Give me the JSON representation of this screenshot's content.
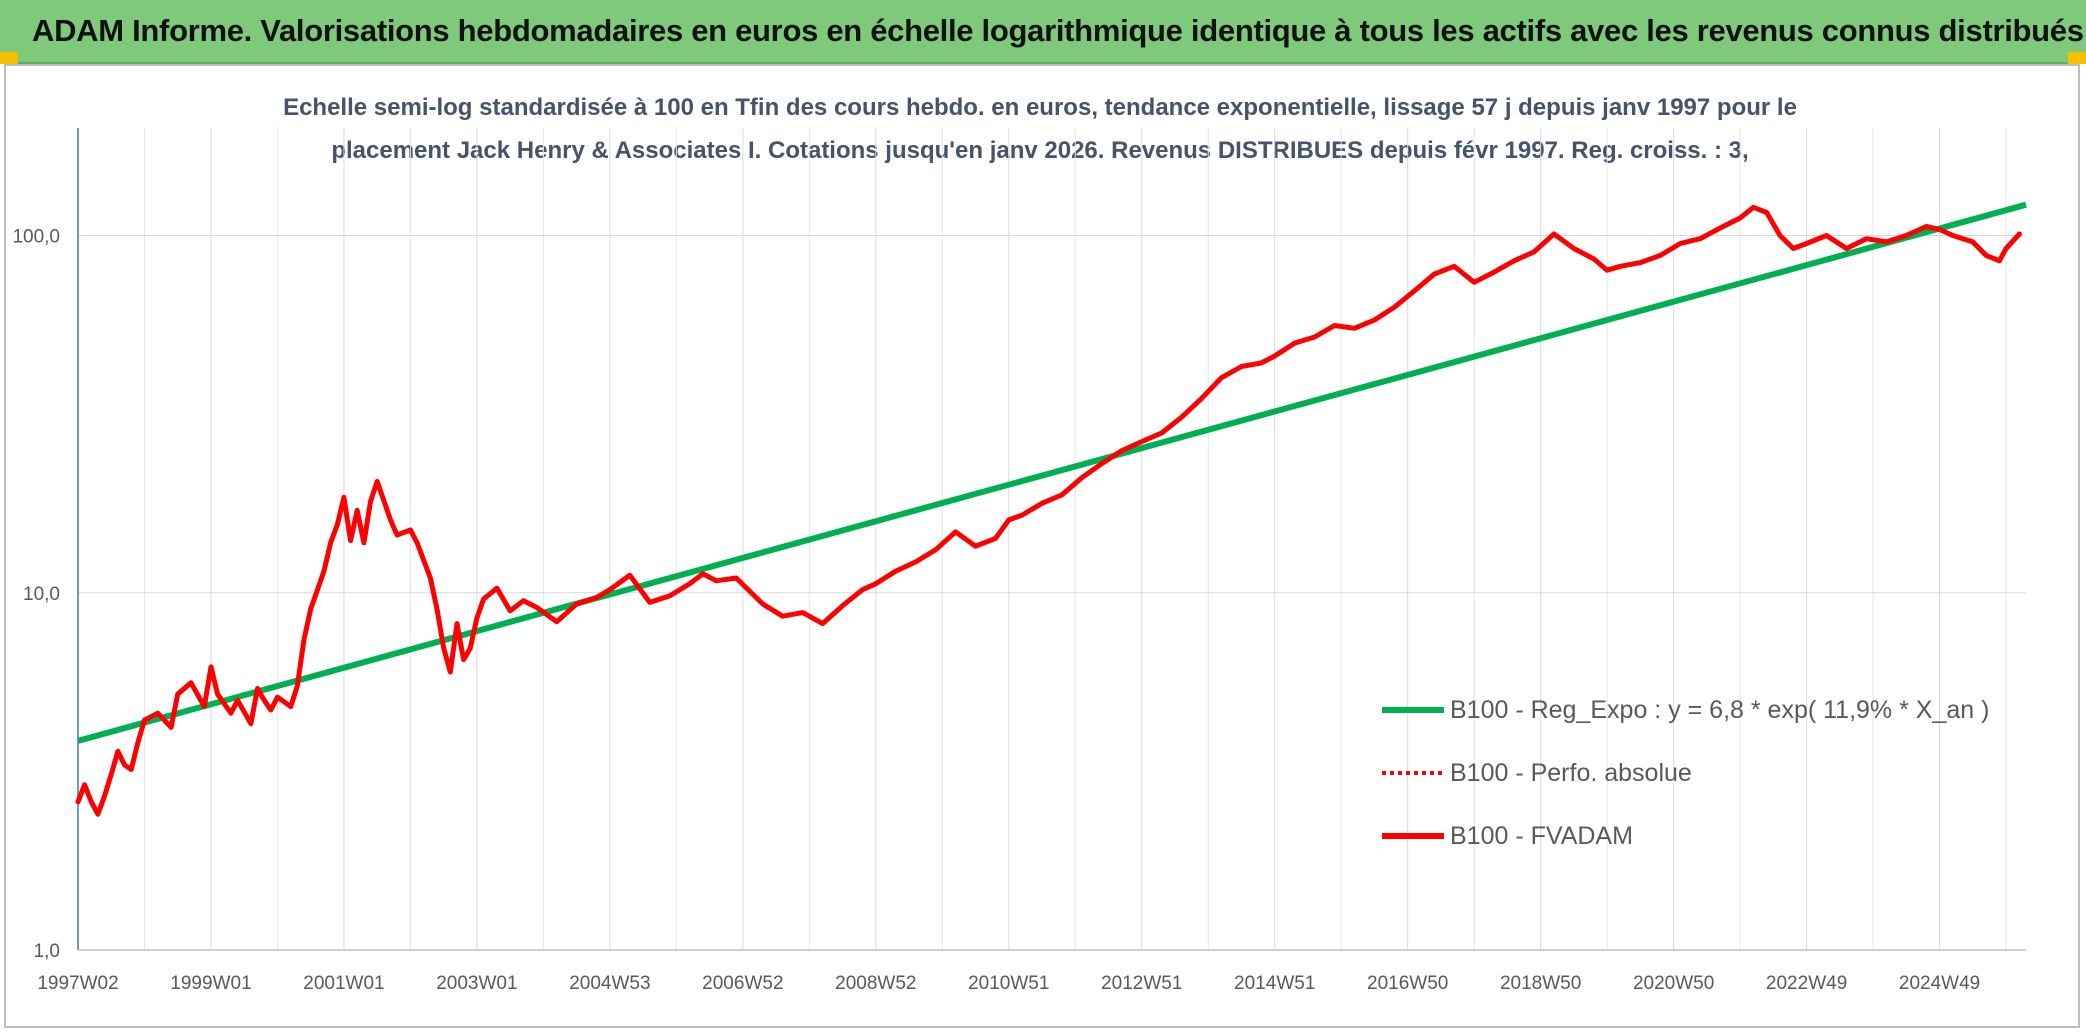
{
  "header": {
    "title": "ADAM Informe. Valorisations hebdomadaires en euros en échelle logarithmique identique à tous les actifs avec les revenus connus distribués"
  },
  "chart_data": {
    "type": "line",
    "title_lines": [
      "Echelle semi-log standardisée à 100 en Tfin des cours hebdo. en euros, tendance exponentielle, lissage 57 j depuis janv 1997 pour le",
      "placement Jack Henry & Associates I. Cotations jusqu'en janv 2026. Revenus DISTRIBUES depuis févr 1997. Reg. croiss. : 3,"
    ],
    "y_scale": "log",
    "ylim": [
      1,
      200
    ],
    "xlim": [
      1997.0,
      2026.3
    ],
    "y_ticks": [
      {
        "value": 1,
        "label": "1,0"
      },
      {
        "value": 10,
        "label": "10,0"
      },
      {
        "value": 100,
        "label": "100,0"
      }
    ],
    "x_ticks": [
      {
        "value": 1997.0,
        "label": "1997W02"
      },
      {
        "value": 1999.0,
        "label": "1999W01"
      },
      {
        "value": 2001.0,
        "label": "2001W01"
      },
      {
        "value": 2003.0,
        "label": "2003W01"
      },
      {
        "value": 2005.0,
        "label": "2004W53"
      },
      {
        "value": 2007.0,
        "label": "2006W52"
      },
      {
        "value": 2009.0,
        "label": "2008W52"
      },
      {
        "value": 2011.0,
        "label": "2010W51"
      },
      {
        "value": 2013.0,
        "label": "2012W51"
      },
      {
        "value": 2015.0,
        "label": "2014W51"
      },
      {
        "value": 2017.0,
        "label": "2016W50"
      },
      {
        "value": 2019.0,
        "label": "2018W50"
      },
      {
        "value": 2021.0,
        "label": "2020W50"
      },
      {
        "value": 2023.0,
        "label": "2022W49"
      },
      {
        "value": 2025.0,
        "label": "2024W49"
      }
    ],
    "grid": "vertical and horizontal",
    "legend_position": "bottom-right",
    "series": [
      {
        "name": "B100 - Reg_Expo : y = 6,8 * exp( 11,9% *  X_an )",
        "color": "#00b050",
        "style": "solid",
        "x": [
          1997.0,
          2026.3
        ],
        "values": [
          3.85,
          122
        ]
      },
      {
        "name": "B100 - Perfo. absolue",
        "color": "#ff0000",
        "style": "dotted",
        "x": [],
        "values": []
      },
      {
        "name": "B100 - FVADAM",
        "color": "#ff0000",
        "style": "solid",
        "x": [
          1997.0,
          1997.1,
          1997.2,
          1997.3,
          1997.4,
          1997.5,
          1997.6,
          1997.7,
          1997.8,
          1997.9,
          1998.0,
          1998.2,
          1998.4,
          1998.5,
          1998.7,
          1998.9,
          1999.0,
          1999.1,
          1999.3,
          1999.4,
          1999.6,
          1999.7,
          1999.8,
          1999.9,
          2000.0,
          2000.2,
          2000.3,
          2000.4,
          2000.5,
          2000.7,
          2000.8,
          2000.9,
          2001.0,
          2001.1,
          2001.2,
          2001.3,
          2001.4,
          2001.5,
          2001.7,
          2001.8,
          2002.0,
          2002.1,
          2002.3,
          2002.4,
          2002.5,
          2002.6,
          2002.7,
          2002.8,
          2002.9,
          2003.0,
          2003.1,
          2003.3,
          2003.5,
          2003.7,
          2003.9,
          2004.2,
          2004.5,
          2004.8,
          2005.0,
          2005.3,
          2005.6,
          2005.9,
          2006.2,
          2006.4,
          2006.6,
          2006.9,
          2007.3,
          2007.6,
          2007.9,
          2008.2,
          2008.5,
          2008.8,
          2009.0,
          2009.3,
          2009.6,
          2009.9,
          2010.2,
          2010.5,
          2010.8,
          2011.0,
          2011.2,
          2011.5,
          2011.8,
          2012.1,
          2012.4,
          2012.7,
          2013.0,
          2013.3,
          2013.6,
          2013.9,
          2014.2,
          2014.5,
          2014.8,
          2015.0,
          2015.3,
          2015.6,
          2015.9,
          2016.2,
          2016.5,
          2016.8,
          2017.1,
          2017.4,
          2017.7,
          2018.0,
          2018.3,
          2018.6,
          2018.9,
          2019.2,
          2019.5,
          2019.8,
          2020.0,
          2020.2,
          2020.5,
          2020.8,
          2021.1,
          2021.4,
          2021.7,
          2022.0,
          2022.2,
          2022.4,
          2022.6,
          2022.8,
          2023.0,
          2023.3,
          2023.6,
          2023.9,
          2024.2,
          2024.5,
          2024.8,
          2025.0,
          2025.2,
          2025.5,
          2025.7,
          2025.9,
          2026.0,
          2026.2
        ],
        "values": [
          2.6,
          2.9,
          2.6,
          2.4,
          2.7,
          3.1,
          3.6,
          3.3,
          3.2,
          3.8,
          4.4,
          4.6,
          4.2,
          5.2,
          5.6,
          4.8,
          6.2,
          5.2,
          4.6,
          5.0,
          4.3,
          5.4,
          5.0,
          4.7,
          5.1,
          4.8,
          5.5,
          7.4,
          9.0,
          11.5,
          13.8,
          15.5,
          18.5,
          14.0,
          17.0,
          13.8,
          18.0,
          20.5,
          16.0,
          14.5,
          15.0,
          13.8,
          11.0,
          9.0,
          7.0,
          6.0,
          8.2,
          6.5,
          7.0,
          8.5,
          9.6,
          10.3,
          8.9,
          9.5,
          9.1,
          8.3,
          9.3,
          9.7,
          10.2,
          11.2,
          9.4,
          9.8,
          10.6,
          11.3,
          10.8,
          11.0,
          9.3,
          8.6,
          8.8,
          8.2,
          9.2,
          10.2,
          10.6,
          11.5,
          12.2,
          13.2,
          14.8,
          13.5,
          14.2,
          16.0,
          16.5,
          17.8,
          18.8,
          21.0,
          23.0,
          25.0,
          26.5,
          28.0,
          31.0,
          35.0,
          40.0,
          43.0,
          44.0,
          46.0,
          50.0,
          52.0,
          56.0,
          55.0,
          58.0,
          63.0,
          70.0,
          78.0,
          82.0,
          74.0,
          79.0,
          85.0,
          90.0,
          101.0,
          92.0,
          86.0,
          80.0,
          82.0,
          84.0,
          88.0,
          95.0,
          98.0,
          105.0,
          112.0,
          120.0,
          116.0,
          100.0,
          92.0,
          95.0,
          100.0,
          92.0,
          98.0,
          96.0,
          100.0,
          106.0,
          104.0,
          100.0,
          96.0,
          88.0,
          85.0,
          92.0,
          101.0
        ]
      }
    ]
  }
}
